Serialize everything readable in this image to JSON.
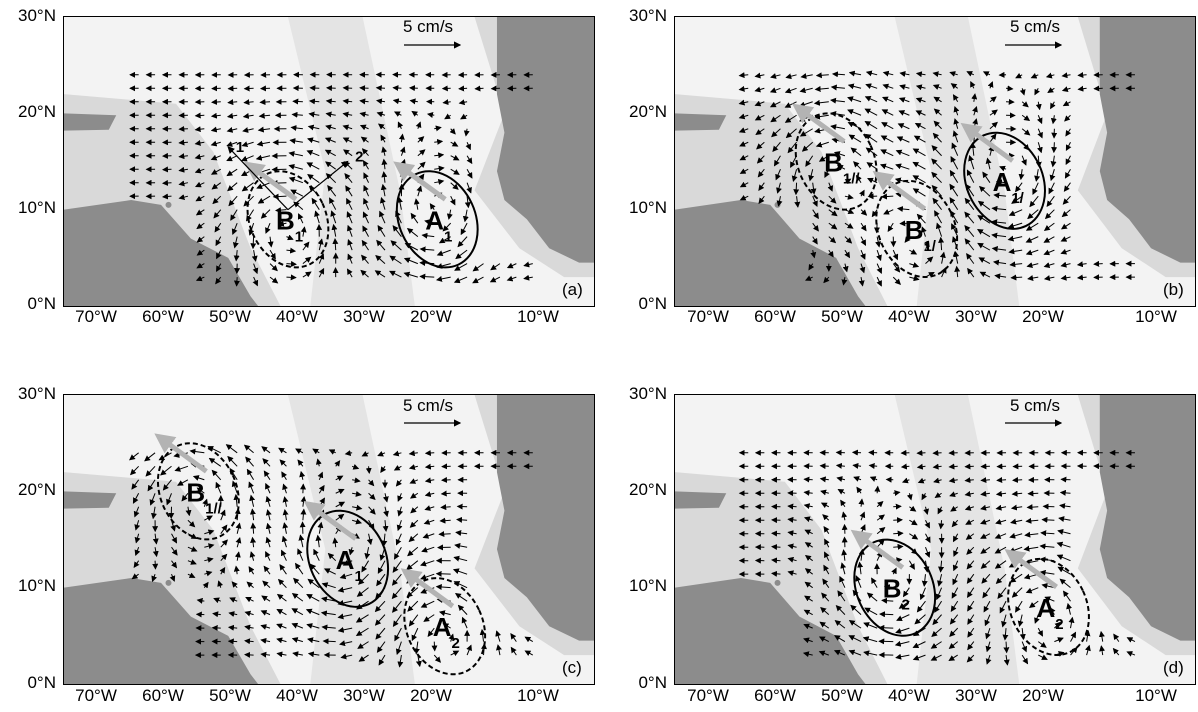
{
  "y_ticks": [
    "30°N",
    "20°N",
    "10°N",
    "0°N"
  ],
  "x_ticks": [
    "70°W",
    "60°W",
    "50°W",
    "40°W",
    "30°W",
    "20°W",
    "10°W"
  ],
  "scale_label": "5 cm/s",
  "colors": {
    "land": "#8c8c8c",
    "shelf": "#d9d9d9",
    "ocean": "#f3f3f3",
    "arrow": "#000000",
    "eddy_motion_arrow": "#b3b3b3"
  },
  "panels": [
    {
      "id": "a",
      "label": "(a)",
      "eddies": [
        {
          "name": "B",
          "sub": "1",
          "lon": -45,
          "lat": 9
        },
        {
          "name": "A",
          "sub": "1",
          "lon": -25,
          "lat": 9
        }
      ],
      "transect_labels": [
        "1",
        "2"
      ]
    },
    {
      "id": "b",
      "label": "(b)",
      "eddies": [
        {
          "name": "B",
          "sub": "1//",
          "lon": -53,
          "lat": 15
        },
        {
          "name": "B",
          "sub": "1/",
          "lon": -42,
          "lat": 8
        },
        {
          "name": "A",
          "sub": "1/",
          "lon": -30,
          "lat": 13
        }
      ]
    },
    {
      "id": "c",
      "label": "(c)",
      "eddies": [
        {
          "name": "B",
          "sub": "1//",
          "lon": -57,
          "lat": 20
        },
        {
          "name": "A",
          "sub": "1",
          "lon": -37,
          "lat": 13
        },
        {
          "name": "A",
          "sub": "2",
          "lon": -24,
          "lat": 6
        }
      ]
    },
    {
      "id": "d",
      "label": "(d)",
      "eddies": [
        {
          "name": "B",
          "sub": "2",
          "lon": -45,
          "lat": 10
        },
        {
          "name": "A",
          "sub": "2",
          "lon": -24,
          "lat": 8
        }
      ]
    }
  ]
}
